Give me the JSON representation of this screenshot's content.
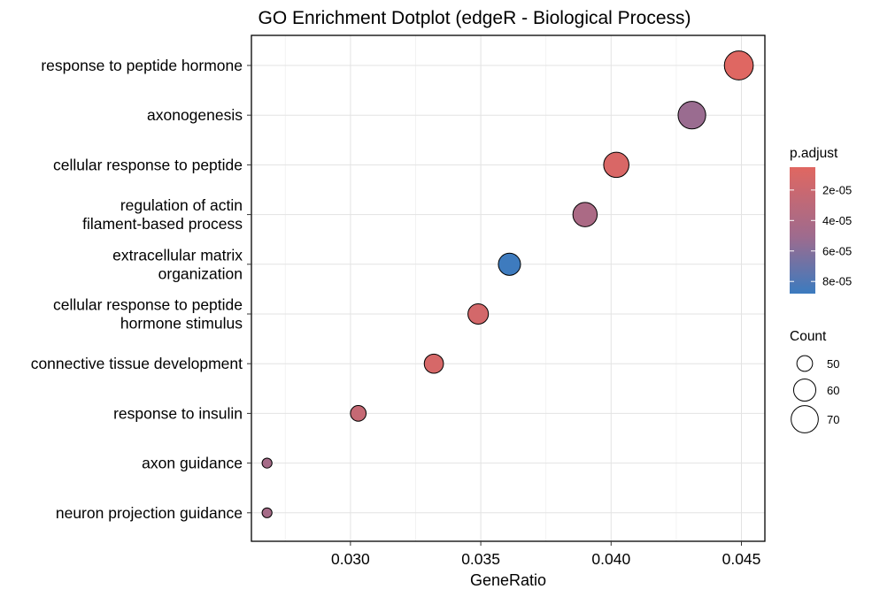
{
  "chart_data": {
    "type": "scatter",
    "title": "GO Enrichment Dotplot (edgeR - Biological Process)",
    "xlabel": "GeneRatio",
    "ylabel": "",
    "xlim": [
      0.0262,
      0.0459
    ],
    "xticks": [
      "0.030",
      "0.035",
      "0.040",
      "0.045"
    ],
    "xtick_values": [
      0.03,
      0.035,
      0.04,
      0.045
    ],
    "grid": true,
    "legend_position": "right",
    "color_scale": {
      "title": "p.adjust",
      "low_color": "#E06761",
      "high_color": "#3B7BBF",
      "range": [
        5e-06,
        8.8e-05
      ],
      "ticks": [
        "2e-05",
        "4e-05",
        "6e-05",
        "8e-05"
      ],
      "tick_values": [
        2e-05,
        4e-05,
        6e-05,
        8e-05
      ]
    },
    "size_scale": {
      "title": "Count",
      "values": [
        50,
        60,
        70
      ],
      "labels": [
        "50",
        "60",
        "70"
      ]
    },
    "terms": [
      {
        "label": [
          "response to peptide hormone"
        ],
        "gene_ratio": 0.0449,
        "count": 74,
        "p_adjust": 6e-06
      },
      {
        "label": [
          "axonogenesis"
        ],
        "gene_ratio": 0.0431,
        "count": 71,
        "p_adjust": 5.2e-05
      },
      {
        "label": [
          "cellular response to peptide"
        ],
        "gene_ratio": 0.0402,
        "count": 66,
        "p_adjust": 1e-05
      },
      {
        "label": [
          "regulation of actin",
          "filament-based process"
        ],
        "gene_ratio": 0.039,
        "count": 64,
        "p_adjust": 4.2e-05
      },
      {
        "label": [
          "extracellular matrix",
          "organization"
        ],
        "gene_ratio": 0.0361,
        "count": 60,
        "p_adjust": 8.7e-05
      },
      {
        "label": [
          "cellular response to peptide",
          "hormone stimulus"
        ],
        "gene_ratio": 0.0349,
        "count": 57,
        "p_adjust": 1.4e-05
      },
      {
        "label": [
          "connective tissue development"
        ],
        "gene_ratio": 0.0332,
        "count": 55,
        "p_adjust": 1.2e-05
      },
      {
        "label": [
          "response to insulin"
        ],
        "gene_ratio": 0.0303,
        "count": 50,
        "p_adjust": 2.4e-05
      },
      {
        "label": [
          "axon guidance"
        ],
        "gene_ratio": 0.0268,
        "count": 44,
        "p_adjust": 4.5e-05
      },
      {
        "label": [
          "neuron projection guidance"
        ],
        "gene_ratio": 0.0268,
        "count": 44,
        "p_adjust": 4.5e-05
      }
    ]
  }
}
